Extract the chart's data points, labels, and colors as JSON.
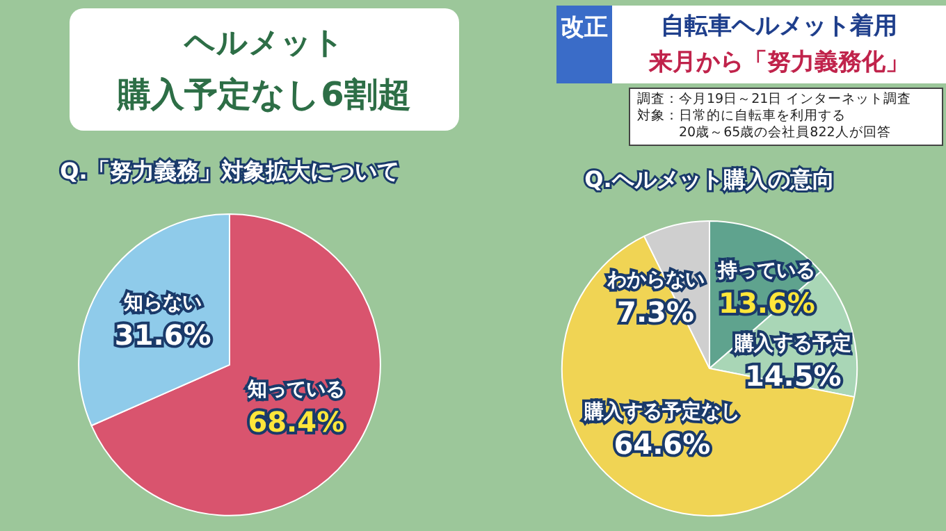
{
  "chart_data": [
    {
      "type": "pie",
      "title": "Q.「努力義務」対象拡大について",
      "categories": [
        "知っている",
        "知らない"
      ],
      "values": [
        68.4,
        31.6
      ],
      "colors": [
        "#d9546e",
        "#8fcbea"
      ],
      "value_labels": [
        "68.4%",
        "31.6%"
      ],
      "annotations": [
        "ヘルメット",
        "購入予定なし6割超",
        "改正",
        "自転車ヘルメット着用",
        "来月から「努力義務化」"
      ]
    },
    {
      "type": "pie",
      "title": "Q.ヘルメット購入の意向",
      "categories": [
        "持っている",
        "購入する予定",
        "購入する予定なし",
        "わからない"
      ],
      "values": [
        13.6,
        14.5,
        64.6,
        7.3
      ],
      "colors": [
        "#5fa38e",
        "#a9d6b6",
        "#f0d454",
        "#cfcfcf"
      ],
      "value_labels": [
        "13.6%",
        "14.5%",
        "64.6%",
        "7.3%"
      ],
      "annotations": [
        "調査：今月19日～21日 インターネット調査",
        "対象：日常的に自転車を利用する",
        "20歳～65歳の会社員822人が回答"
      ]
    }
  ]
}
